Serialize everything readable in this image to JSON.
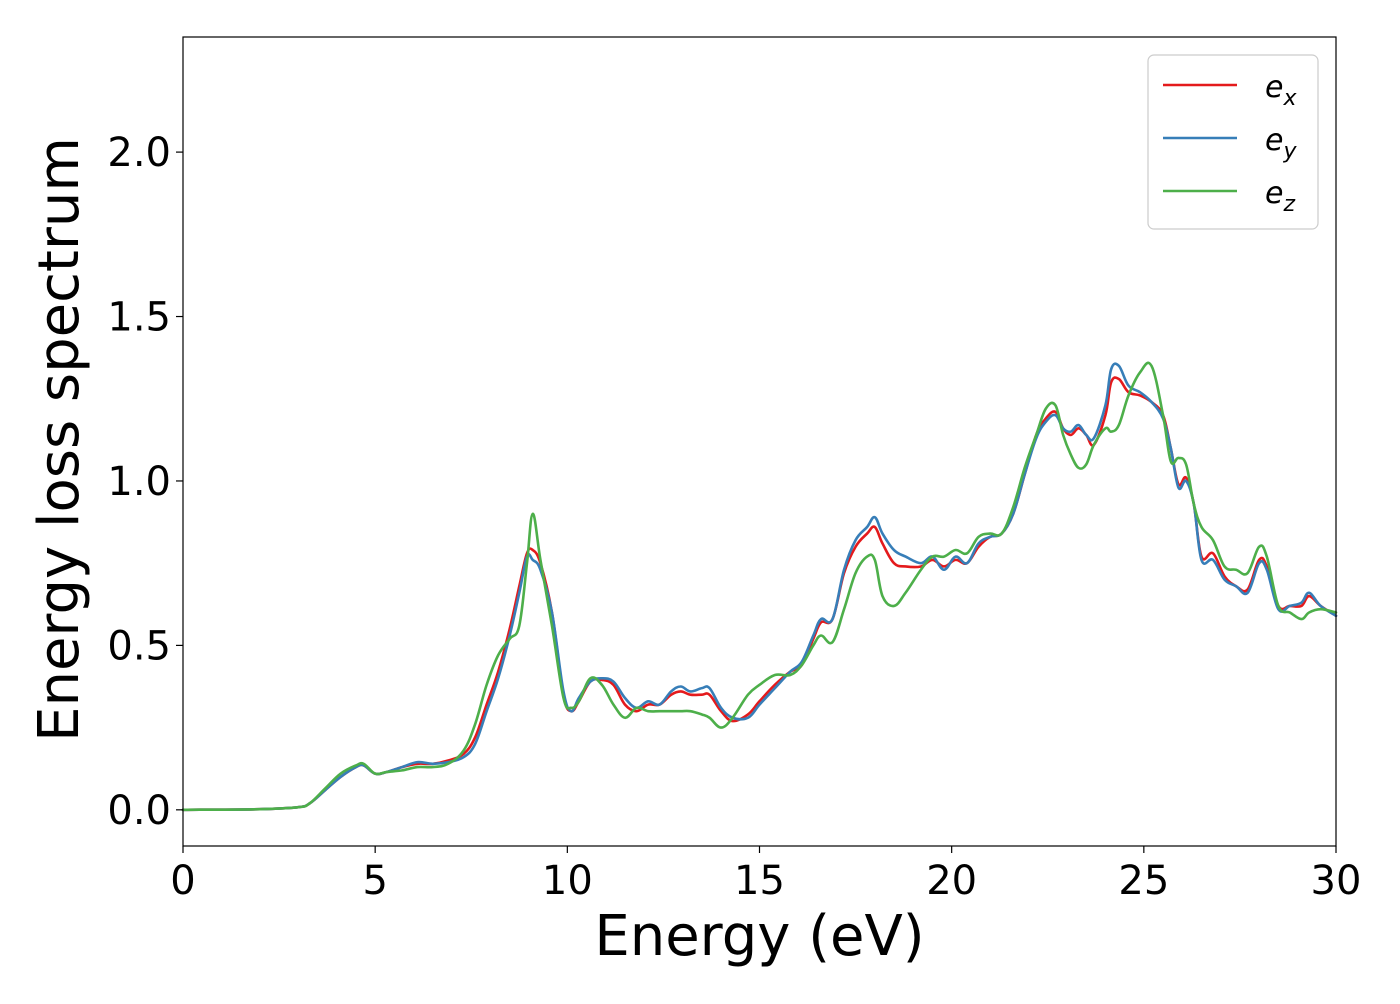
{
  "chart_data": {
    "type": "line",
    "title": "",
    "xlabel": "Energy (eV)",
    "ylabel": "Energy loss spectrum",
    "xlim": [
      0,
      30
    ],
    "ylim": [
      -0.11,
      2.35
    ],
    "xticks": [
      0,
      5,
      10,
      15,
      20,
      25,
      30
    ],
    "xtick_labels": [
      "0",
      "5",
      "10",
      "15",
      "20",
      "25",
      "30"
    ],
    "yticks": [
      0.0,
      0.5,
      1.0,
      1.5,
      2.0
    ],
    "ytick_labels": [
      "0.0",
      "0.5",
      "1.0",
      "1.5",
      "2.0"
    ],
    "grid": false,
    "legend_position": "top-right",
    "series": [
      {
        "name": "e_x",
        "legend_base": "e",
        "legend_sub": "x",
        "color": "#e41a1c",
        "x": [
          0,
          2,
          3,
          3.3,
          3.7,
          4.1,
          4.5,
          4.7,
          5.0,
          5.3,
          5.7,
          6.1,
          6.5,
          6.9,
          7.3,
          7.6,
          7.9,
          8.2,
          8.5,
          8.75,
          8.95,
          9.1,
          9.3,
          9.6,
          9.9,
          10.1,
          10.3,
          10.6,
          10.9,
          11.2,
          11.5,
          11.8,
          12.1,
          12.4,
          12.7,
          12.95,
          13.2,
          13.5,
          13.7,
          14.0,
          14.3,
          14.7,
          15.0,
          15.4,
          15.8,
          16.1,
          16.4,
          16.6,
          16.9,
          17.2,
          17.5,
          17.8,
          18.0,
          18.2,
          18.5,
          18.8,
          19.2,
          19.5,
          19.8,
          20.1,
          20.4,
          20.7,
          21.0,
          21.3,
          21.6,
          21.9,
          22.2,
          22.45,
          22.7,
          22.9,
          23.1,
          23.3,
          23.5,
          23.7,
          24.0,
          24.15,
          24.35,
          24.6,
          24.9,
          25.2,
          25.5,
          25.7,
          25.9,
          26.1,
          26.3,
          26.5,
          26.8,
          27.1,
          27.4,
          27.7,
          28.0,
          28.2,
          28.5,
          28.8,
          29.1,
          29.3,
          29.6,
          30
        ],
        "values": [
          0,
          0.002,
          0.008,
          0.02,
          0.06,
          0.1,
          0.13,
          0.135,
          0.11,
          0.115,
          0.13,
          0.14,
          0.14,
          0.15,
          0.17,
          0.22,
          0.32,
          0.42,
          0.55,
          0.68,
          0.78,
          0.79,
          0.75,
          0.6,
          0.35,
          0.3,
          0.33,
          0.39,
          0.395,
          0.38,
          0.32,
          0.3,
          0.32,
          0.32,
          0.35,
          0.36,
          0.35,
          0.35,
          0.35,
          0.3,
          0.27,
          0.29,
          0.33,
          0.38,
          0.42,
          0.44,
          0.52,
          0.57,
          0.58,
          0.72,
          0.8,
          0.84,
          0.86,
          0.81,
          0.75,
          0.74,
          0.74,
          0.76,
          0.74,
          0.76,
          0.75,
          0.8,
          0.83,
          0.84,
          0.9,
          1.02,
          1.14,
          1.19,
          1.21,
          1.16,
          1.14,
          1.16,
          1.14,
          1.11,
          1.2,
          1.3,
          1.31,
          1.27,
          1.26,
          1.24,
          1.2,
          1.1,
          0.99,
          1.01,
          0.93,
          0.77,
          0.78,
          0.71,
          0.68,
          0.67,
          0.76,
          0.74,
          0.62,
          0.62,
          0.62,
          0.65,
          0.62,
          0.59
        ]
      },
      {
        "name": "e_y",
        "legend_base": "e",
        "legend_sub": "y",
        "color": "#377eb8",
        "x": [
          0,
          2,
          3,
          3.3,
          3.7,
          4.1,
          4.5,
          4.7,
          5.0,
          5.3,
          5.7,
          6.1,
          6.5,
          6.9,
          7.3,
          7.6,
          7.9,
          8.2,
          8.5,
          8.75,
          8.95,
          9.1,
          9.3,
          9.6,
          9.9,
          10.1,
          10.3,
          10.6,
          10.9,
          11.2,
          11.5,
          11.8,
          12.1,
          12.4,
          12.7,
          12.95,
          13.2,
          13.5,
          13.7,
          14.0,
          14.3,
          14.7,
          15.0,
          15.4,
          15.8,
          16.1,
          16.4,
          16.6,
          16.9,
          17.2,
          17.5,
          17.8,
          18.0,
          18.2,
          18.5,
          18.8,
          19.2,
          19.5,
          19.8,
          20.1,
          20.4,
          20.7,
          21.0,
          21.3,
          21.6,
          21.9,
          22.2,
          22.45,
          22.7,
          22.9,
          23.1,
          23.3,
          23.5,
          23.7,
          24.0,
          24.15,
          24.35,
          24.6,
          24.9,
          25.2,
          25.5,
          25.7,
          25.9,
          26.1,
          26.3,
          26.5,
          26.8,
          27.1,
          27.4,
          27.7,
          28.0,
          28.2,
          28.5,
          28.8,
          29.1,
          29.3,
          29.6,
          30
        ],
        "values": [
          0,
          0.002,
          0.008,
          0.02,
          0.06,
          0.1,
          0.13,
          0.135,
          0.11,
          0.115,
          0.13,
          0.145,
          0.14,
          0.145,
          0.16,
          0.2,
          0.3,
          0.4,
          0.53,
          0.66,
          0.77,
          0.76,
          0.73,
          0.6,
          0.36,
          0.3,
          0.34,
          0.39,
          0.4,
          0.39,
          0.34,
          0.31,
          0.33,
          0.32,
          0.36,
          0.375,
          0.36,
          0.37,
          0.37,
          0.31,
          0.28,
          0.28,
          0.32,
          0.37,
          0.42,
          0.45,
          0.53,
          0.58,
          0.58,
          0.73,
          0.82,
          0.86,
          0.89,
          0.84,
          0.79,
          0.77,
          0.75,
          0.77,
          0.73,
          0.77,
          0.75,
          0.81,
          0.83,
          0.84,
          0.9,
          1.02,
          1.13,
          1.18,
          1.2,
          1.16,
          1.15,
          1.17,
          1.14,
          1.13,
          1.23,
          1.34,
          1.35,
          1.29,
          1.27,
          1.24,
          1.19,
          1.1,
          0.98,
          1.0,
          0.93,
          0.76,
          0.76,
          0.7,
          0.68,
          0.66,
          0.75,
          0.73,
          0.61,
          0.62,
          0.63,
          0.66,
          0.62,
          0.59
        ]
      },
      {
        "name": "e_z",
        "legend_base": "e",
        "legend_sub": "z",
        "color": "#4daf4a",
        "x": [
          0,
          2,
          3,
          3.3,
          3.7,
          4.1,
          4.5,
          4.7,
          5.0,
          5.3,
          5.7,
          6.1,
          6.5,
          6.9,
          7.3,
          7.6,
          7.9,
          8.2,
          8.5,
          8.75,
          8.95,
          9.1,
          9.3,
          9.6,
          9.9,
          10.1,
          10.3,
          10.6,
          10.9,
          11.2,
          11.5,
          11.8,
          12.1,
          12.4,
          12.7,
          12.95,
          13.2,
          13.5,
          13.7,
          14.0,
          14.3,
          14.7,
          15.0,
          15.4,
          15.8,
          16.1,
          16.4,
          16.6,
          16.9,
          17.2,
          17.5,
          17.8,
          18.0,
          18.2,
          18.5,
          18.8,
          19.2,
          19.5,
          19.8,
          20.1,
          20.4,
          20.7,
          21.0,
          21.3,
          21.6,
          21.9,
          22.2,
          22.45,
          22.7,
          22.9,
          23.1,
          23.3,
          23.5,
          23.7,
          24.0,
          24.15,
          24.35,
          24.6,
          24.9,
          25.2,
          25.5,
          25.7,
          25.9,
          26.1,
          26.3,
          26.5,
          26.8,
          27.1,
          27.4,
          27.7,
          28.0,
          28.2,
          28.5,
          28.8,
          29.1,
          29.3,
          29.6,
          30
        ],
        "values": [
          0,
          0.002,
          0.008,
          0.02,
          0.065,
          0.11,
          0.135,
          0.14,
          0.11,
          0.115,
          0.12,
          0.13,
          0.13,
          0.14,
          0.18,
          0.26,
          0.38,
          0.47,
          0.52,
          0.56,
          0.75,
          0.9,
          0.76,
          0.56,
          0.34,
          0.31,
          0.33,
          0.4,
          0.38,
          0.32,
          0.28,
          0.31,
          0.3,
          0.3,
          0.3,
          0.3,
          0.3,
          0.29,
          0.28,
          0.25,
          0.28,
          0.35,
          0.38,
          0.41,
          0.41,
          0.44,
          0.5,
          0.53,
          0.51,
          0.61,
          0.72,
          0.77,
          0.76,
          0.65,
          0.62,
          0.66,
          0.73,
          0.77,
          0.77,
          0.79,
          0.78,
          0.83,
          0.84,
          0.84,
          0.92,
          1.04,
          1.14,
          1.22,
          1.23,
          1.14,
          1.08,
          1.04,
          1.05,
          1.11,
          1.16,
          1.15,
          1.17,
          1.26,
          1.33,
          1.35,
          1.2,
          1.06,
          1.07,
          1.05,
          0.93,
          0.86,
          0.82,
          0.74,
          0.73,
          0.72,
          0.8,
          0.77,
          0.62,
          0.6,
          0.58,
          0.6,
          0.61,
          0.6
        ]
      }
    ]
  }
}
